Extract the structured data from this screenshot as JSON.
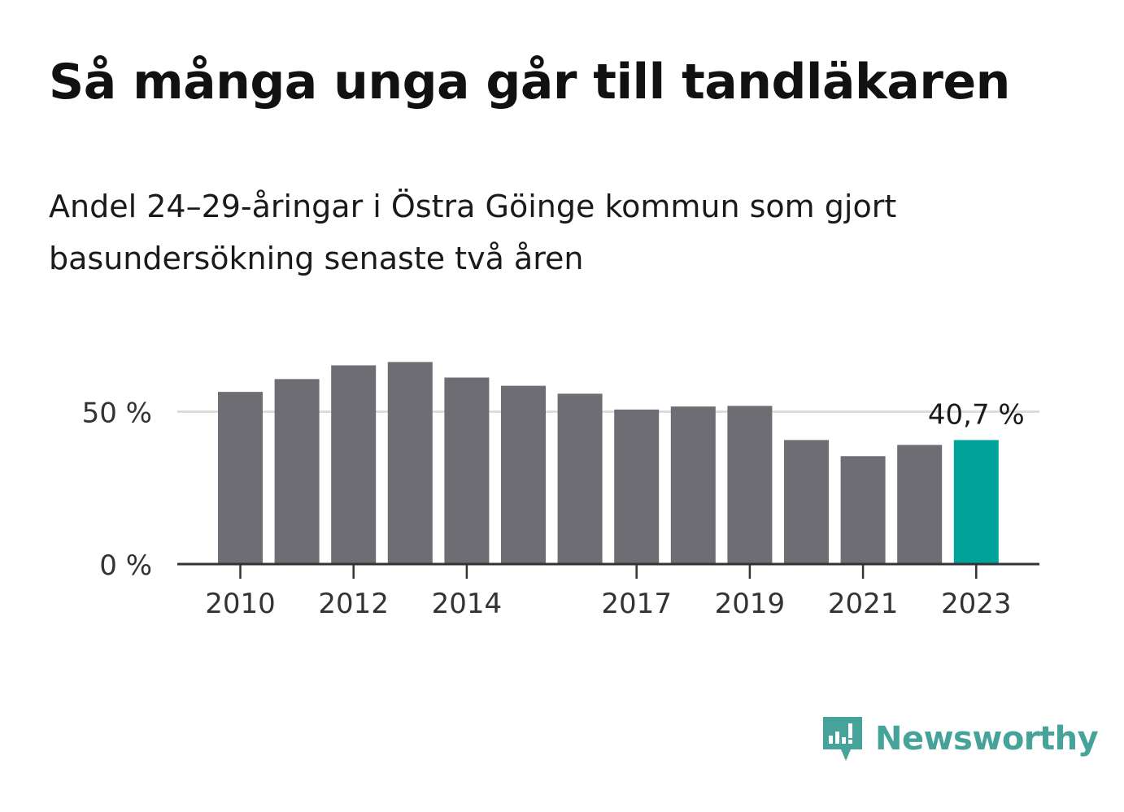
{
  "header": {
    "title": "Så många unga går till tandläkaren",
    "subtitle": "Andel 24–29-åringar i Östra Göinge kommun som gjort basundersökning senaste två åren"
  },
  "brand": {
    "name": "Newsworthy",
    "color": "#46a39a"
  },
  "colors": {
    "bar": "#6e6d73",
    "highlight": "#00a39a",
    "grid": "#dddddd",
    "axis": "#333333"
  },
  "chart_data": {
    "type": "bar",
    "categories": [
      "2010",
      "2011",
      "2012",
      "2013",
      "2014",
      "2015",
      "2016",
      "2017",
      "2018",
      "2019",
      "2020",
      "2021",
      "2022",
      "2023"
    ],
    "values": [
      56.5,
      60.7,
      65.2,
      66.3,
      61.2,
      58.5,
      55.9,
      50.7,
      51.7,
      51.9,
      40.7,
      35.4,
      39.1,
      40.7
    ],
    "highlight_index": 13,
    "highlight_label": "40,7 %",
    "x_tick_labels": [
      "2010",
      "2012",
      "2014",
      "2017",
      "2019",
      "2021",
      "2023"
    ],
    "y_ticks": [
      {
        "value": 0,
        "label": "0 %"
      },
      {
        "value": 50,
        "label": "50 %"
      }
    ],
    "ylim": [
      0,
      72
    ],
    "grid": true
  }
}
